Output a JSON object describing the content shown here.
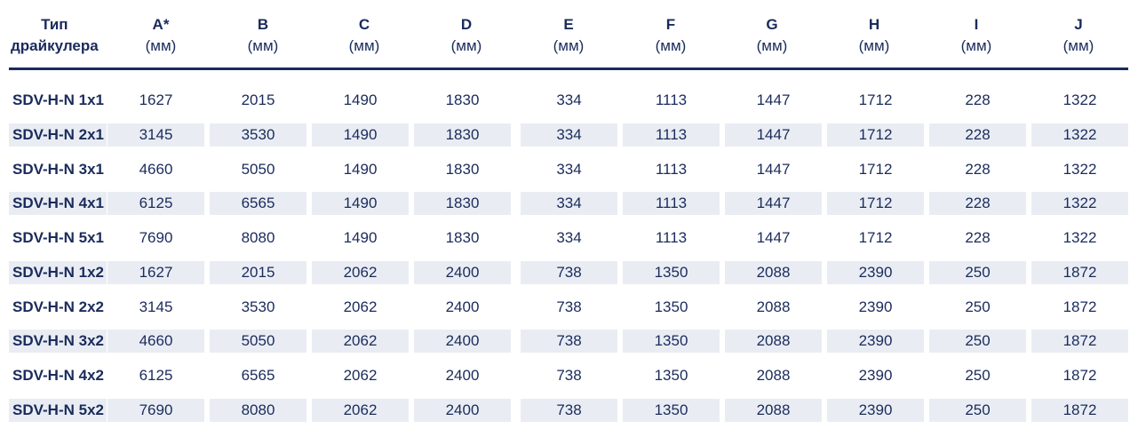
{
  "header": {
    "type_line1": "Тип",
    "type_line2": "драйкулера",
    "columns": [
      {
        "letter": "A*",
        "unit": "(мм)"
      },
      {
        "letter": "B",
        "unit": "(мм)"
      },
      {
        "letter": "C",
        "unit": "(мм)"
      },
      {
        "letter": "D",
        "unit": "(мм)"
      },
      {
        "letter": "E",
        "unit": "(мм)"
      },
      {
        "letter": "F",
        "unit": "(мм)"
      },
      {
        "letter": "G",
        "unit": "(мм)"
      },
      {
        "letter": "H",
        "unit": "(мм)"
      },
      {
        "letter": "I",
        "unit": "(мм)"
      },
      {
        "letter": "J",
        "unit": "(мм)"
      }
    ]
  },
  "rows": [
    {
      "name": "SDV-H-N 1x1",
      "values": [
        "1627",
        "2015",
        "1490",
        "1830",
        "334",
        "1113",
        "1447",
        "1712",
        "228",
        "1322"
      ]
    },
    {
      "name": "SDV-H-N 2x1",
      "values": [
        "3145",
        "3530",
        "1490",
        "1830",
        "334",
        "1113",
        "1447",
        "1712",
        "228",
        "1322"
      ]
    },
    {
      "name": "SDV-H-N 3x1",
      "values": [
        "4660",
        "5050",
        "1490",
        "1830",
        "334",
        "1113",
        "1447",
        "1712",
        "228",
        "1322"
      ]
    },
    {
      "name": "SDV-H-N 4x1",
      "values": [
        "6125",
        "6565",
        "1490",
        "1830",
        "334",
        "1113",
        "1447",
        "1712",
        "228",
        "1322"
      ]
    },
    {
      "name": "SDV-H-N 5x1",
      "values": [
        "7690",
        "8080",
        "1490",
        "1830",
        "334",
        "1113",
        "1447",
        "1712",
        "228",
        "1322"
      ]
    },
    {
      "name": "SDV-H-N 1x2",
      "values": [
        "1627",
        "2015",
        "2062",
        "2400",
        "738",
        "1350",
        "2088",
        "2390",
        "250",
        "1872"
      ]
    },
    {
      "name": "SDV-H-N 2x2",
      "values": [
        "3145",
        "3530",
        "2062",
        "2400",
        "738",
        "1350",
        "2088",
        "2390",
        "250",
        "1872"
      ]
    },
    {
      "name": "SDV-H-N 3x2",
      "values": [
        "4660",
        "5050",
        "2062",
        "2400",
        "738",
        "1350",
        "2088",
        "2390",
        "250",
        "1872"
      ]
    },
    {
      "name": "SDV-H-N 4x2",
      "values": [
        "6125",
        "6565",
        "2062",
        "2400",
        "738",
        "1350",
        "2088",
        "2390",
        "250",
        "1872"
      ]
    },
    {
      "name": "SDV-H-N 5x2",
      "values": [
        "7690",
        "8080",
        "2062",
        "2400",
        "738",
        "1350",
        "2088",
        "2390",
        "250",
        "1872"
      ]
    }
  ],
  "colors": {
    "text": "#1a2b5c",
    "stripe": "#e9edf3",
    "rule": "#1a2b5c"
  }
}
